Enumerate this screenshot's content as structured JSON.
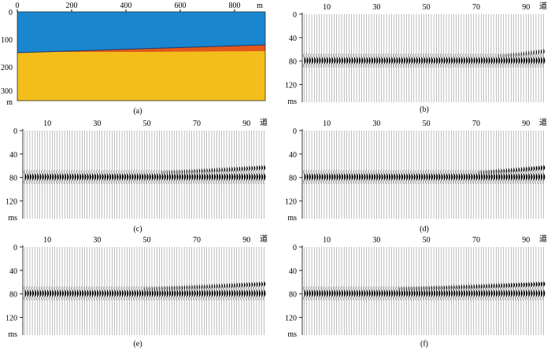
{
  "figure": {
    "panel_a": {
      "caption": "(a)",
      "x_ticks": [
        "0",
        "200",
        "400",
        "600",
        "800"
      ],
      "x_unit": "m",
      "y_ticks": [
        "0",
        "100",
        "200",
        "300"
      ],
      "y_unit": "m",
      "layer_colors": {
        "top": "#1a86cf",
        "middle": "#e2591b",
        "bottom": "#f3be1b"
      }
    },
    "trace_panels": [
      {
        "id": "b",
        "caption": "(b)"
      },
      {
        "id": "c",
        "caption": "(c)"
      },
      {
        "id": "d",
        "caption": "(d)"
      },
      {
        "id": "e",
        "caption": "(e)"
      },
      {
        "id": "f",
        "caption": "(f)"
      }
    ],
    "trace_axis": {
      "x_ticks": [
        "10",
        "30",
        "50",
        "70",
        "90"
      ],
      "x_unit": "道",
      "y_ticks": [
        "0",
        "40",
        "80",
        "120"
      ],
      "y_unit": "ms"
    }
  }
}
